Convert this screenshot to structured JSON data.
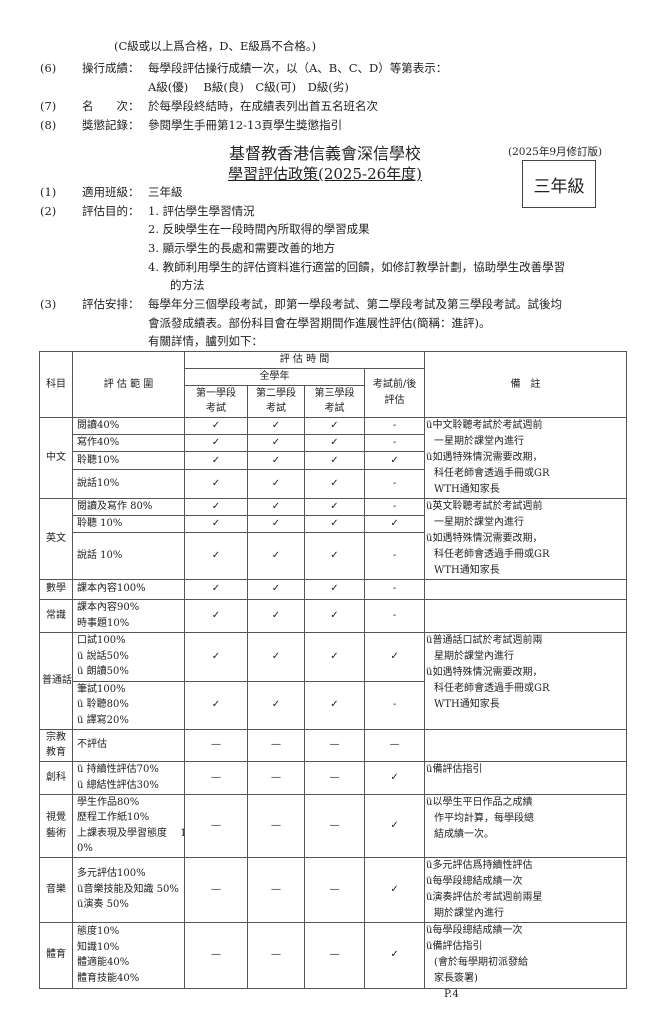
{
  "intro": {
    "pass_note": "(C級或以上爲合格，D、E級爲不合格。)",
    "items_before": [
      {
        "num": "(6)",
        "label": "操行成績：",
        "content": "每學段評估操行成績一次，以（A、B、C、D）等第表示：",
        "content2": "A級(優)　 B級(良)　C級(可)　D級(劣)"
      },
      {
        "num": "(7)",
        "label": "名　　次：",
        "content": "於每學段終結時，在成績表列出首五名班名次"
      },
      {
        "num": "(8)",
        "label": "獎懲記錄：",
        "content": "參閱學生手冊第12-13頁學生獎懲指引"
      }
    ]
  },
  "header": {
    "school": "基督教香港信義會深信學校",
    "policy": "學習評估政策(2025-26年度)",
    "revision": "(2025年9月修訂版)",
    "grade_box": "三年級"
  },
  "sections": {
    "s1": {
      "num": "(1)",
      "label": "適用班級：",
      "content": "三年級"
    },
    "s2": {
      "num": "(2)",
      "label": "評估目的：",
      "items": [
        "1.  評估學生學習情況",
        "2.  反映學生在一段時間內所取得的學習成果",
        "3.  顯示學生的長處和需要改善的地方",
        "4.  教師利用學生的評估資料進行適當的回饋，如修訂教學計劃，協助學生改善學習",
        "的方法"
      ]
    },
    "s3": {
      "num": "(3)",
      "label": "評估安排：",
      "lines": [
        "每學年分三個學段考試，即第一學段考試、第二學段考試及第三學段考試。試後均",
        "會派發成績表。部份科目會在學習期間作進展性評估(簡稱：進評)。",
        "有關詳情，臚列如下："
      ]
    }
  },
  "table": {
    "headers": {
      "subject": "科目",
      "range": "評 估 範 圍",
      "timing": "評 估 時 間",
      "whole_year": "全學年",
      "t1": [
        "第一學段",
        "考試"
      ],
      "t2": [
        "第二學段",
        "考試"
      ],
      "t3": [
        "第三學段",
        "考試"
      ],
      "pre": [
        "考試前/後",
        "評估"
      ],
      "notes": "備　註"
    },
    "subjects": [
      {
        "name": [
          "中文"
        ],
        "rows": [
          {
            "range": [
              "閱讀40%"
            ],
            "marks": [
              "✓",
              "✓",
              "✓",
              "-"
            ]
          },
          {
            "range": [
              "寫作40%"
            ],
            "marks": [
              "✓",
              "✓",
              "✓",
              "-"
            ]
          },
          {
            "range": [
              "聆聽10%"
            ],
            "marks": [
              "✓",
              "✓",
              "✓",
              "✓"
            ]
          },
          {
            "range": [
              "說話10%"
            ],
            "marks": [
              "✓",
              "✓",
              "✓",
              "-"
            ]
          }
        ],
        "notes": [
          "ü中文聆聽考試於考試週前",
          " 一星期於課堂內進行",
          "ü如遇特殊情況需要改期，",
          " 科任老師會透過手冊或GR",
          " WTH通知家長"
        ]
      },
      {
        "name": [
          "英文"
        ],
        "rows": [
          {
            "range": [
              "閱讀及寫作 80%"
            ],
            "marks": [
              "✓",
              "✓",
              "✓",
              "-"
            ]
          },
          {
            "range": [
              "聆聽 10%"
            ],
            "marks": [
              "✓",
              "✓",
              "✓",
              "✓"
            ]
          },
          {
            "range": [
              "說話 10%"
            ],
            "marks": [
              "✓",
              "✓",
              "✓",
              "-"
            ]
          }
        ],
        "notes": [
          "ü英文聆聽考試於考試週前",
          " 一星期於課堂內進行",
          "ü如遇特殊情況需要改期，",
          " 科任老師會透過手冊或GR",
          " WTH通知家長"
        ]
      },
      {
        "name": [
          "數學"
        ],
        "rows": [
          {
            "range": [
              "課本內容100%"
            ],
            "marks": [
              "✓",
              "✓",
              "✓",
              "-"
            ]
          }
        ],
        "notes": []
      },
      {
        "name": [
          "常識"
        ],
        "rows": [
          {
            "range": [
              "課本內容90%",
              "時事題10%"
            ],
            "marks": [
              "✓",
              "✓",
              "✓",
              "-"
            ]
          }
        ],
        "notes": []
      },
      {
        "name": [
          "普通話"
        ],
        "rows": [
          {
            "range": [
              "口試100%",
              "ü 說話50%",
              "ü 朗讀50%"
            ],
            "marks": [
              "✓",
              "✓",
              "✓",
              "✓"
            ]
          },
          {
            "range": [
              "筆試100%",
              "ü 聆聽80%",
              "ü 譯寫20%"
            ],
            "marks": [
              "✓",
              "✓",
              "✓",
              "-"
            ]
          }
        ],
        "notes": [
          "ü普通話口試於考試週前兩",
          " 星期於課堂內進行",
          "ü如遇特殊情況需要改期，",
          " 科任老師會透過手冊或GR",
          " WTH通知家長"
        ]
      },
      {
        "name": [
          "宗教",
          "教育"
        ],
        "rows": [
          {
            "range": [
              "不評估"
            ],
            "marks": [
              "—",
              "—",
              "—",
              "—"
            ]
          }
        ],
        "notes": []
      },
      {
        "name": [
          "創科"
        ],
        "rows": [
          {
            "range": [
              "ü 持續性評估70%",
              "ü 總結性評估30%"
            ],
            "marks": [
              "—",
              "—",
              "—",
              "✓"
            ]
          }
        ],
        "notes": [
          "ü備評估指引"
        ]
      },
      {
        "name": [
          "視覺",
          "藝術"
        ],
        "rows": [
          {
            "range": [
              "學生作品80%",
              "歷程工作紙10%",
              "上課表現及學習態度　 1",
              "0%"
            ],
            "marks": [
              "—",
              "—",
              "—",
              "✓"
            ]
          }
        ],
        "notes": [
          "ü以學生平日作品之成績",
          " 作平均計算，每學段總",
          " 結成績一次。"
        ]
      },
      {
        "name": [
          "音樂"
        ],
        "rows": [
          {
            "range": [
              "多元評估100%",
              "ü音樂技能及知識 50%",
              "ü演奏 50%"
            ],
            "marks": [
              "—",
              "—",
              "—",
              "✓"
            ]
          }
        ],
        "notes": [
          "ü多元評估爲持續性評估",
          "ü每學段總結成績一次",
          "ü演奏評估於考試週前兩星",
          " 期於課堂內進行"
        ]
      },
      {
        "name": [
          "體育"
        ],
        "rows": [
          {
            "range": [
              "態度10%",
              "知識10%",
              "體適能40%",
              "體育技能40%"
            ],
            "marks": [
              "—",
              "—",
              "—",
              "✓"
            ]
          }
        ],
        "notes": [
          "ü每學段總結成績一次",
          "ü備評估指引",
          " (會於每學期初派發給",
          "  家長簽署)"
        ]
      }
    ]
  },
  "footer": {
    "page": "P.4"
  }
}
